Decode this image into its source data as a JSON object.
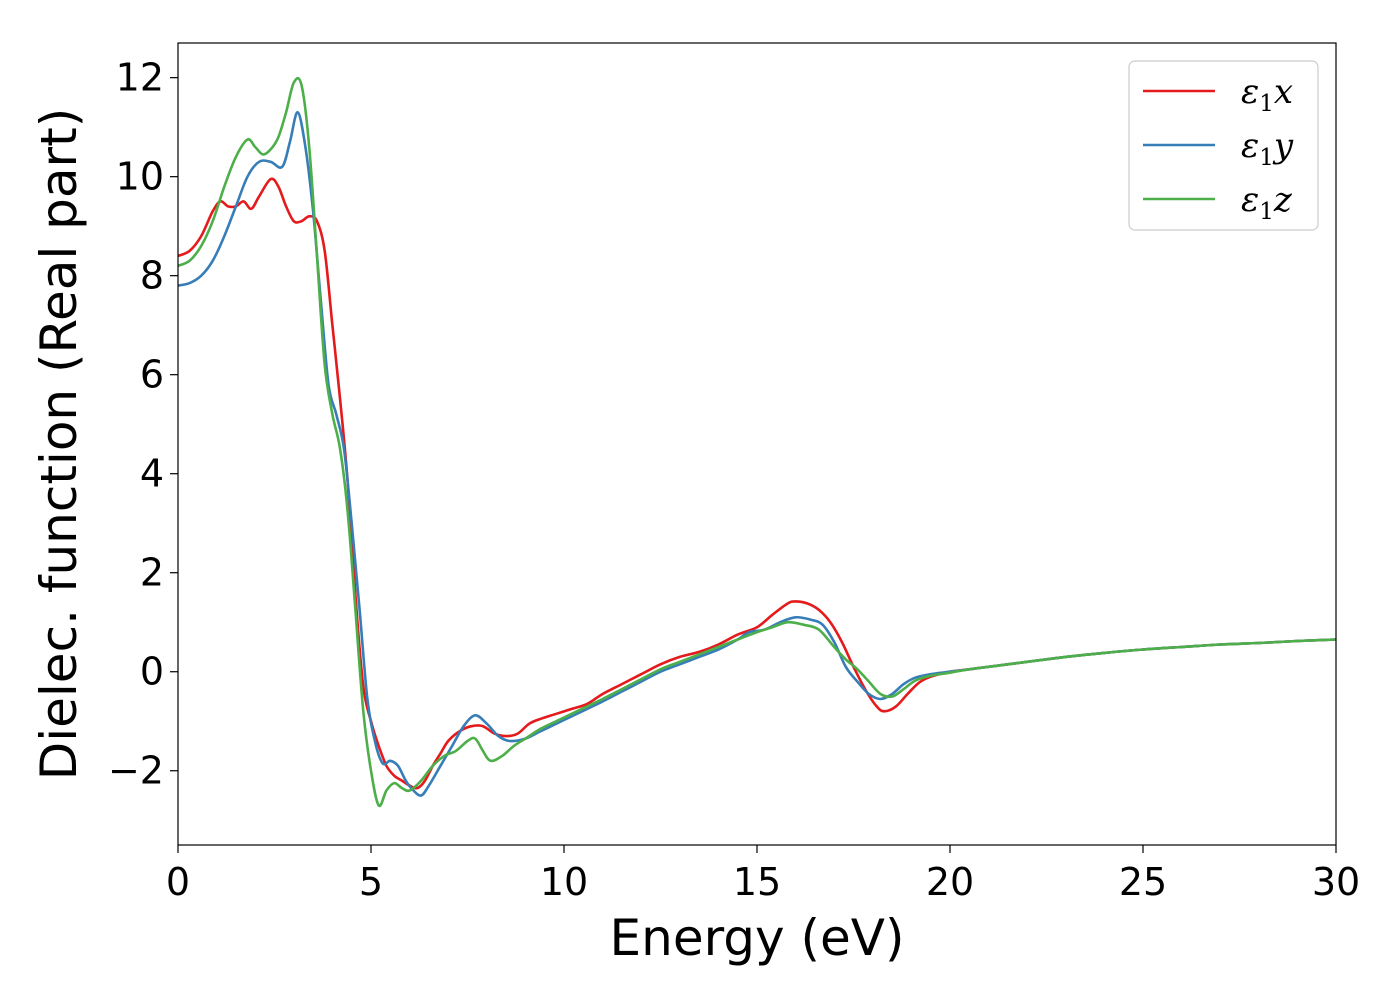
{
  "chart_data": {
    "type": "line",
    "xlabel": "Energy (eV)",
    "ylabel": "Dielec. function (Real part)",
    "xlim": [
      0,
      30
    ],
    "ylim": [
      -3.5,
      12.7
    ],
    "xticks": [
      0,
      5,
      10,
      15,
      20,
      25,
      30
    ],
    "yticks": [
      -2,
      0,
      2,
      4,
      6,
      8,
      10,
      12
    ],
    "ytick_labels": [
      "−2",
      "0",
      "2",
      "4",
      "6",
      "8",
      "10",
      "12"
    ],
    "grid": false,
    "legend_position": "top-right",
    "series": [
      {
        "name": "x",
        "name_prefix": "ε",
        "name_subscript": "1",
        "color": "#e41a1c",
        "x": [
          0,
          0.3,
          0.6,
          0.9,
          1.1,
          1.3,
          1.5,
          1.7,
          1.9,
          2.1,
          2.4,
          2.6,
          2.8,
          3.0,
          3.2,
          3.4,
          3.6,
          3.8,
          4.0,
          4.2,
          4.4,
          4.6,
          4.8,
          5.0,
          5.2,
          5.4,
          5.6,
          5.8,
          6.0,
          6.2,
          6.4,
          6.6,
          6.8,
          7.0,
          7.3,
          7.6,
          7.9,
          8.2,
          8.5,
          8.8,
          9.1,
          9.4,
          9.8,
          10.2,
          10.6,
          11.0,
          11.5,
          12.0,
          12.5,
          13.0,
          13.5,
          14.0,
          14.5,
          15.0,
          15.4,
          15.8,
          16.0,
          16.3,
          16.6,
          16.9,
          17.2,
          17.5,
          17.8,
          18.1,
          18.3,
          18.6,
          18.9,
          19.2,
          19.5,
          20.0,
          20.5,
          21.0,
          21.5,
          22.0,
          23.0,
          24.0,
          25.0,
          26.0,
          27.0,
          28.0,
          29.0,
          30.0
        ],
        "y": [
          8.4,
          8.5,
          8.8,
          9.3,
          9.5,
          9.4,
          9.4,
          9.5,
          9.35,
          9.6,
          9.95,
          9.8,
          9.4,
          9.1,
          9.1,
          9.2,
          9.1,
          8.5,
          7.0,
          5.5,
          3.8,
          1.5,
          -0.3,
          -1.0,
          -1.5,
          -1.9,
          -2.1,
          -2.2,
          -2.3,
          -2.35,
          -2.2,
          -1.9,
          -1.65,
          -1.4,
          -1.2,
          -1.1,
          -1.1,
          -1.25,
          -1.3,
          -1.25,
          -1.05,
          -0.95,
          -0.85,
          -0.75,
          -0.65,
          -0.45,
          -0.25,
          -0.05,
          0.15,
          0.3,
          0.4,
          0.55,
          0.75,
          0.9,
          1.15,
          1.38,
          1.42,
          1.38,
          1.25,
          1.0,
          0.6,
          0.1,
          -0.35,
          -0.7,
          -0.8,
          -0.7,
          -0.45,
          -0.22,
          -0.1,
          0.0,
          0.05,
          0.1,
          0.15,
          0.2,
          0.3,
          0.38,
          0.45,
          0.5,
          0.55,
          0.58,
          0.62,
          0.65
        ]
      },
      {
        "name": "y",
        "name_prefix": "ε",
        "name_subscript": "1",
        "color": "#377eb8",
        "x": [
          0,
          0.3,
          0.6,
          0.9,
          1.2,
          1.5,
          1.8,
          2.1,
          2.4,
          2.7,
          2.9,
          3.1,
          3.3,
          3.5,
          3.7,
          3.9,
          4.1,
          4.3,
          4.5,
          4.7,
          4.9,
          5.1,
          5.3,
          5.5,
          5.7,
          5.9,
          6.1,
          6.3,
          6.5,
          6.8,
          7.1,
          7.4,
          7.7,
          8.0,
          8.3,
          8.6,
          9.0,
          9.4,
          9.8,
          10.2,
          10.6,
          11.0,
          11.5,
          12.0,
          12.5,
          13.0,
          13.5,
          14.0,
          14.5,
          14.8,
          15.2,
          15.6,
          16.0,
          16.4,
          16.7,
          17.0,
          17.3,
          17.6,
          17.9,
          18.2,
          18.5,
          18.8,
          19.1,
          19.5,
          20.0,
          20.5,
          21.0,
          22.0,
          23.0,
          24.0,
          25.0,
          26.0,
          27.0,
          28.0,
          29.0,
          30.0
        ],
        "y": [
          7.8,
          7.85,
          8.0,
          8.3,
          8.8,
          9.4,
          10.0,
          10.3,
          10.3,
          10.2,
          10.7,
          11.3,
          10.6,
          9.3,
          7.5,
          5.8,
          5.2,
          4.5,
          3.0,
          1.3,
          -0.5,
          -1.4,
          -1.85,
          -1.8,
          -1.9,
          -2.2,
          -2.4,
          -2.5,
          -2.3,
          -1.9,
          -1.5,
          -1.1,
          -0.88,
          -1.05,
          -1.3,
          -1.4,
          -1.35,
          -1.2,
          -1.05,
          -0.9,
          -0.75,
          -0.6,
          -0.4,
          -0.2,
          0.0,
          0.15,
          0.3,
          0.45,
          0.65,
          0.8,
          0.85,
          1.0,
          1.1,
          1.05,
          0.95,
          0.6,
          0.1,
          -0.2,
          -0.45,
          -0.55,
          -0.45,
          -0.25,
          -0.12,
          -0.05,
          0.0,
          0.05,
          0.1,
          0.2,
          0.3,
          0.38,
          0.45,
          0.5,
          0.55,
          0.58,
          0.62,
          0.65
        ]
      },
      {
        "name": "z",
        "name_prefix": "ε",
        "name_subscript": "1",
        "color": "#4daf4a",
        "x": [
          0,
          0.3,
          0.6,
          0.9,
          1.2,
          1.5,
          1.8,
          2.0,
          2.2,
          2.4,
          2.6,
          2.8,
          3.0,
          3.2,
          3.4,
          3.6,
          3.8,
          4.0,
          4.2,
          4.4,
          4.6,
          4.8,
          5.0,
          5.2,
          5.4,
          5.6,
          5.8,
          6.0,
          6.3,
          6.6,
          6.9,
          7.2,
          7.5,
          7.7,
          7.9,
          8.1,
          8.4,
          8.7,
          9.0,
          9.4,
          9.8,
          10.2,
          10.6,
          11.0,
          11.5,
          12.0,
          12.5,
          13.0,
          13.5,
          14.0,
          14.5,
          15.0,
          15.4,
          15.8,
          16.2,
          16.6,
          17.0,
          17.3,
          17.6,
          17.9,
          18.2,
          18.5,
          18.8,
          19.1,
          19.5,
          20.0,
          20.5,
          21.0,
          22.0,
          23.0,
          24.0,
          25.0,
          26.0,
          27.0,
          28.0,
          29.0,
          30.0
        ],
        "y": [
          8.2,
          8.3,
          8.6,
          9.1,
          9.8,
          10.4,
          10.75,
          10.6,
          10.45,
          10.55,
          10.8,
          11.3,
          11.9,
          11.85,
          10.6,
          8.4,
          6.2,
          5.2,
          4.5,
          3.2,
          1.2,
          -0.8,
          -2.0,
          -2.7,
          -2.4,
          -2.25,
          -2.35,
          -2.4,
          -2.2,
          -1.9,
          -1.7,
          -1.6,
          -1.4,
          -1.35,
          -1.6,
          -1.8,
          -1.7,
          -1.5,
          -1.35,
          -1.15,
          -1.0,
          -0.85,
          -0.7,
          -0.55,
          -0.35,
          -0.15,
          0.05,
          0.2,
          0.35,
          0.5,
          0.65,
          0.8,
          0.9,
          1.0,
          0.95,
          0.85,
          0.5,
          0.25,
          0.05,
          -0.2,
          -0.45,
          -0.5,
          -0.35,
          -0.18,
          -0.08,
          -0.02,
          0.05,
          0.1,
          0.2,
          0.3,
          0.38,
          0.45,
          0.5,
          0.55,
          0.58,
          0.62,
          0.65
        ]
      }
    ]
  }
}
